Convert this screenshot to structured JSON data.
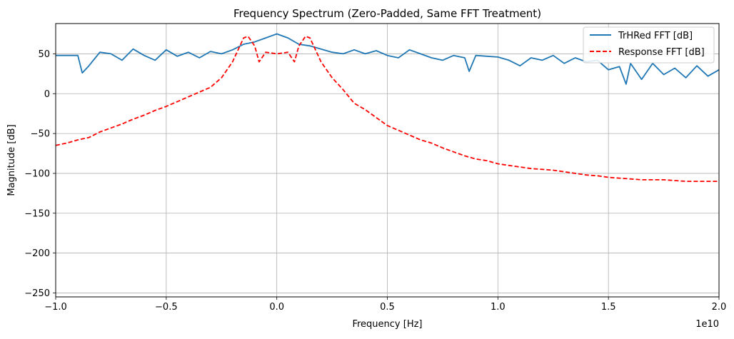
{
  "chart_data": {
    "type": "line",
    "title": "Frequency Spectrum (Zero-Padded, Same FFT Treatment)",
    "xlabel": "Frequency [Hz]",
    "ylabel": "Magnitude [dB]",
    "x_offset_label": "1e10",
    "xlim": [
      -1.0,
      2.0
    ],
    "ylim": [
      -255,
      88
    ],
    "x_ticks": [
      -1.0,
      -0.5,
      0.0,
      0.5,
      1.0,
      1.5,
      2.0
    ],
    "x_tick_labels": [
      "−1.0",
      "−0.5",
      "0.0",
      "0.5",
      "1.0",
      "1.5",
      "2.0"
    ],
    "y_ticks": [
      -250,
      -200,
      -150,
      -100,
      -50,
      0,
      50
    ],
    "y_tick_labels": [
      "−250",
      "−200",
      "−150",
      "−100",
      "−50",
      "0",
      "50"
    ],
    "grid": true,
    "legend_position": "top-right",
    "series": [
      {
        "name": "TrHRed FFT [dB]",
        "color": "#1f77b4",
        "style": "solid",
        "x": [
          -1.0,
          -0.95,
          -0.9,
          -0.88,
          -0.85,
          -0.8,
          -0.75,
          -0.7,
          -0.65,
          -0.6,
          -0.55,
          -0.5,
          -0.45,
          -0.4,
          -0.35,
          -0.3,
          -0.25,
          -0.2,
          -0.15,
          -0.1,
          -0.05,
          0.0,
          0.05,
          0.1,
          0.15,
          0.2,
          0.25,
          0.3,
          0.35,
          0.4,
          0.45,
          0.5,
          0.55,
          0.6,
          0.65,
          0.7,
          0.75,
          0.8,
          0.85,
          0.87,
          0.9,
          0.95,
          1.0,
          1.05,
          1.1,
          1.15,
          1.2,
          1.25,
          1.3,
          1.35,
          1.4,
          1.45,
          1.5,
          1.55,
          1.58,
          1.6,
          1.65,
          1.7,
          1.75,
          1.8,
          1.85,
          1.9,
          1.95,
          2.0
        ],
        "y": [
          48,
          48,
          48,
          26,
          35,
          52,
          50,
          42,
          56,
          48,
          42,
          55,
          47,
          52,
          45,
          53,
          50,
          55,
          62,
          65,
          70,
          75,
          70,
          62,
          60,
          56,
          52,
          50,
          55,
          50,
          54,
          48,
          45,
          55,
          50,
          45,
          42,
          48,
          45,
          28,
          48,
          47,
          46,
          42,
          35,
          45,
          42,
          48,
          38,
          45,
          40,
          42,
          30,
          34,
          12,
          38,
          18,
          38,
          24,
          32,
          20,
          35,
          22,
          30
        ]
      },
      {
        "name": "Response FFT [dB]",
        "color": "#ff0000",
        "style": "dashed",
        "x": [
          -1.0,
          -0.95,
          -0.9,
          -0.85,
          -0.8,
          -0.75,
          -0.7,
          -0.65,
          -0.6,
          -0.55,
          -0.5,
          -0.45,
          -0.4,
          -0.35,
          -0.3,
          -0.25,
          -0.2,
          -0.15,
          -0.13,
          -0.1,
          -0.08,
          -0.05,
          0.0,
          0.05,
          0.08,
          0.1,
          0.13,
          0.15,
          0.2,
          0.25,
          0.3,
          0.35,
          0.4,
          0.45,
          0.5,
          0.55,
          0.6,
          0.65,
          0.7,
          0.75,
          0.8,
          0.85,
          0.9,
          0.95,
          1.0,
          1.05,
          1.1,
          1.15,
          1.2,
          1.25,
          1.3,
          1.35,
          1.4,
          1.45,
          1.5,
          1.55,
          1.6,
          1.65,
          1.7,
          1.75,
          1.8,
          1.85,
          1.9,
          1.95,
          2.0
        ],
        "y": [
          -65,
          -62,
          -58,
          -55,
          -48,
          -43,
          -38,
          -32,
          -27,
          -21,
          -16,
          -10,
          -4,
          2,
          8,
          20,
          40,
          70,
          72,
          60,
          40,
          52,
          50,
          52,
          40,
          60,
          72,
          70,
          40,
          20,
          5,
          -12,
          -20,
          -30,
          -40,
          -46,
          -52,
          -58,
          -62,
          -68,
          -73,
          -78,
          -82,
          -84,
          -88,
          -90,
          -92,
          -94,
          -95,
          -96,
          -98,
          -100,
          -102,
          -103,
          -105,
          -106,
          -107,
          -108,
          -108,
          -108,
          -109,
          -110,
          -110,
          -110,
          -110
        ]
      }
    ]
  }
}
